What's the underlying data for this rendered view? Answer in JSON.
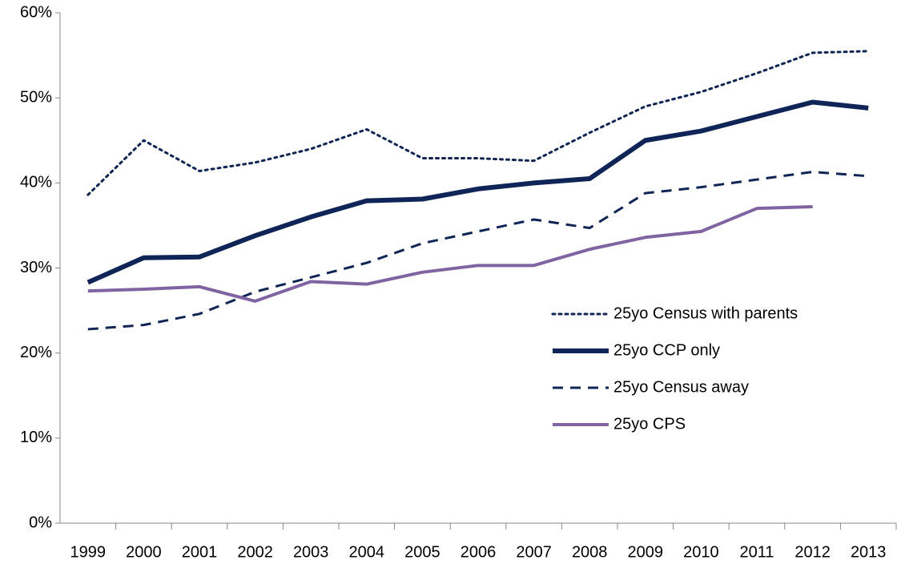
{
  "chart_data": {
    "type": "line",
    "categories": [
      "1999",
      "2000",
      "2001",
      "2002",
      "2003",
      "2004",
      "2005",
      "2006",
      "2007",
      "2008",
      "2009",
      "2010",
      "2011",
      "2012",
      "2013"
    ],
    "ylim": [
      0,
      60
    ],
    "yticks": [
      {
        "value": 0,
        "label": "0%"
      },
      {
        "value": 10,
        "label": "10%"
      },
      {
        "value": 20,
        "label": "20%"
      },
      {
        "value": 30,
        "label": "30%"
      },
      {
        "value": 40,
        "label": "40%"
      },
      {
        "value": 50,
        "label": "50%"
      },
      {
        "value": 60,
        "label": "60%"
      }
    ],
    "grid": false,
    "legend": "right",
    "series": [
      {
        "name": "25yo Census with parents",
        "color": "#0f2557",
        "line_style": "dotted",
        "values": [
          38.6,
          45.0,
          41.4,
          42.4,
          44.0,
          46.3,
          42.9,
          42.9,
          42.6,
          45.9,
          49.0,
          50.7,
          52.9,
          55.3,
          55.5
        ]
      },
      {
        "name": "25yo CCP only",
        "color": "#0f2557",
        "line_style": "thick",
        "values": [
          28.3,
          31.2,
          31.3,
          33.8,
          36.0,
          37.9,
          38.1,
          39.3,
          40.0,
          40.5,
          45.0,
          46.1,
          47.8,
          49.5,
          48.8
        ]
      },
      {
        "name": "25yo Census away",
        "color": "#0f2557",
        "line_style": "dashed",
        "values": [
          22.8,
          23.3,
          24.6,
          27.2,
          28.9,
          30.6,
          32.9,
          34.3,
          35.7,
          34.7,
          38.8,
          39.5,
          40.4,
          41.3,
          40.8
        ]
      },
      {
        "name": "25yo CPS",
        "color": "#8064a2",
        "line_style": "solid",
        "values": [
          27.3,
          27.5,
          27.8,
          26.1,
          28.4,
          28.1,
          29.5,
          30.3,
          30.3,
          32.2,
          33.6,
          34.3,
          37.0,
          37.2,
          null
        ]
      }
    ]
  }
}
